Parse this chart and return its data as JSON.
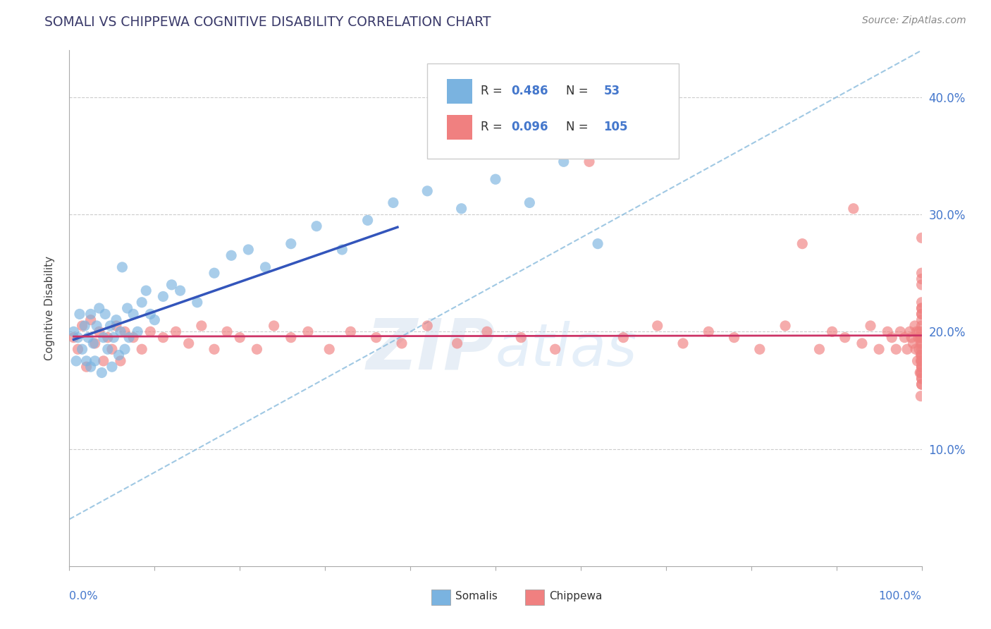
{
  "title": "SOMALI VS CHIPPEWA COGNITIVE DISABILITY CORRELATION CHART",
  "source": "Source: ZipAtlas.com",
  "ylabel": "Cognitive Disability",
  "somali_color": "#7ab3e0",
  "chippewa_color": "#f08080",
  "somali_line_color": "#3355bb",
  "chippewa_line_color": "#cc3366",
  "dash_line_color": "#88bbdd",
  "watermark": "ZIPatlas",
  "xlim": [
    0.0,
    1.0
  ],
  "ylim": [
    0.0,
    0.44
  ],
  "yticks": [
    0.1,
    0.2,
    0.3,
    0.4
  ],
  "ytick_labels": [
    "10.0%",
    "20.0%",
    "30.0%",
    "40.0%"
  ],
  "somali_x": [
    0.005,
    0.008,
    0.01,
    0.012,
    0.015,
    0.018,
    0.02,
    0.022,
    0.025,
    0.025,
    0.028,
    0.03,
    0.032,
    0.035,
    0.038,
    0.04,
    0.042,
    0.045,
    0.048,
    0.05,
    0.052,
    0.055,
    0.058,
    0.06,
    0.062,
    0.065,
    0.068,
    0.07,
    0.075,
    0.08,
    0.085,
    0.09,
    0.095,
    0.1,
    0.11,
    0.12,
    0.13,
    0.15,
    0.17,
    0.19,
    0.21,
    0.23,
    0.26,
    0.29,
    0.32,
    0.35,
    0.38,
    0.42,
    0.46,
    0.5,
    0.54,
    0.58,
    0.62
  ],
  "somali_y": [
    0.2,
    0.175,
    0.195,
    0.215,
    0.185,
    0.205,
    0.175,
    0.195,
    0.17,
    0.215,
    0.19,
    0.175,
    0.205,
    0.22,
    0.165,
    0.195,
    0.215,
    0.185,
    0.205,
    0.17,
    0.195,
    0.21,
    0.18,
    0.2,
    0.255,
    0.185,
    0.22,
    0.195,
    0.215,
    0.2,
    0.225,
    0.235,
    0.215,
    0.21,
    0.23,
    0.24,
    0.235,
    0.225,
    0.25,
    0.265,
    0.27,
    0.255,
    0.275,
    0.29,
    0.27,
    0.295,
    0.31,
    0.32,
    0.305,
    0.33,
    0.31,
    0.345,
    0.275
  ],
  "chippewa_x": [
    0.005,
    0.01,
    0.015,
    0.02,
    0.025,
    0.03,
    0.035,
    0.04,
    0.045,
    0.05,
    0.055,
    0.06,
    0.065,
    0.075,
    0.085,
    0.095,
    0.11,
    0.125,
    0.14,
    0.155,
    0.17,
    0.185,
    0.2,
    0.22,
    0.24,
    0.26,
    0.28,
    0.305,
    0.33,
    0.36,
    0.39,
    0.42,
    0.455,
    0.49,
    0.53,
    0.57,
    0.61,
    0.65,
    0.69,
    0.72,
    0.75,
    0.78,
    0.81,
    0.84,
    0.86,
    0.88,
    0.895,
    0.91,
    0.92,
    0.93,
    0.94,
    0.95,
    0.96,
    0.965,
    0.97,
    0.975,
    0.98,
    0.983,
    0.986,
    0.988,
    0.99,
    0.992,
    0.993,
    0.994,
    0.995,
    0.996,
    0.997,
    0.997,
    0.998,
    0.998,
    0.999,
    0.999,
    0.999,
    0.999,
    0.999,
    1.0,
    1.0,
    1.0,
    1.0,
    1.0,
    1.0,
    1.0,
    1.0,
    1.0,
    1.0,
    1.0,
    1.0,
    1.0,
    1.0,
    1.0,
    1.0,
    1.0,
    1.0,
    1.0,
    1.0,
    1.0,
    1.0,
    1.0,
    1.0,
    1.0,
    1.0,
    1.0,
    1.0,
    1.0,
    1.0
  ],
  "chippewa_y": [
    0.195,
    0.185,
    0.205,
    0.17,
    0.21,
    0.19,
    0.2,
    0.175,
    0.195,
    0.185,
    0.205,
    0.175,
    0.2,
    0.195,
    0.185,
    0.2,
    0.195,
    0.2,
    0.19,
    0.205,
    0.185,
    0.2,
    0.195,
    0.185,
    0.205,
    0.195,
    0.2,
    0.185,
    0.2,
    0.195,
    0.19,
    0.205,
    0.19,
    0.2,
    0.195,
    0.185,
    0.345,
    0.195,
    0.205,
    0.19,
    0.2,
    0.195,
    0.185,
    0.205,
    0.275,
    0.185,
    0.2,
    0.195,
    0.305,
    0.19,
    0.205,
    0.185,
    0.2,
    0.195,
    0.185,
    0.2,
    0.195,
    0.185,
    0.2,
    0.195,
    0.19,
    0.205,
    0.185,
    0.2,
    0.175,
    0.195,
    0.2,
    0.185,
    0.165,
    0.195,
    0.175,
    0.19,
    0.165,
    0.145,
    0.18,
    0.2,
    0.215,
    0.165,
    0.185,
    0.195,
    0.22,
    0.175,
    0.16,
    0.195,
    0.215,
    0.17,
    0.25,
    0.18,
    0.16,
    0.195,
    0.22,
    0.175,
    0.24,
    0.195,
    0.155,
    0.28,
    0.21,
    0.245,
    0.17,
    0.205,
    0.18,
    0.155,
    0.225,
    0.19,
    0.17
  ]
}
